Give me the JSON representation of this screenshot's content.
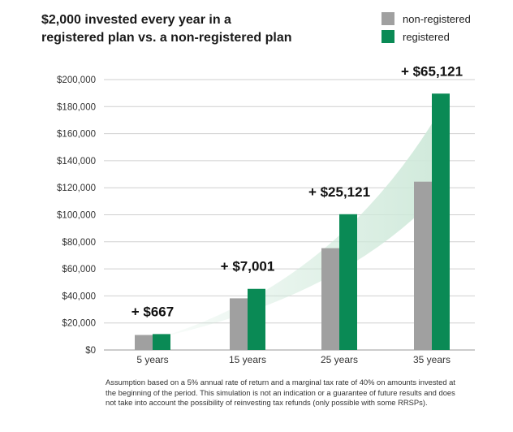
{
  "chart_data": {
    "type": "bar",
    "title_lines": [
      "$2,000 invested every year in a",
      "registered plan vs. a non-registered plan"
    ],
    "categories": [
      "5 years",
      "15 years",
      "25 years",
      "35 years"
    ],
    "series": [
      {
        "name": "non-registered",
        "color": "#a0a0a0",
        "values": [
          11100,
          38200,
          75300,
          124500
        ]
      },
      {
        "name": "registered",
        "color": "#0a8a55",
        "values": [
          11767,
          45201,
          100421,
          189621
        ]
      }
    ],
    "annotations": [
      "+ $667",
      "+ $7,001",
      "+ $25,121",
      "+ $65,121"
    ],
    "yticks": [
      0,
      20000,
      40000,
      60000,
      80000,
      100000,
      120000,
      140000,
      160000,
      180000,
      200000
    ],
    "ytick_labels": [
      "$0",
      "$20,000",
      "$40,000",
      "$60,000",
      "$80,000",
      "$100,000",
      "$120,000",
      "$140,000",
      "$160,000",
      "$180,000",
      "$200,000"
    ],
    "ylim": [
      0,
      200000
    ],
    "xlabel": "",
    "ylabel": "",
    "grid": true,
    "legend_position": "top-right",
    "trend_fill_color": "#cfe9da"
  },
  "footnote": "Assumption based on a 5% annual rate of return and a marginal tax rate of 40% on amounts invested at the beginning of the period. This simulation is not an indication or a guarantee of future results and does not take into account the possibility of reinvesting tax refunds (only possible with some RRSPs)."
}
